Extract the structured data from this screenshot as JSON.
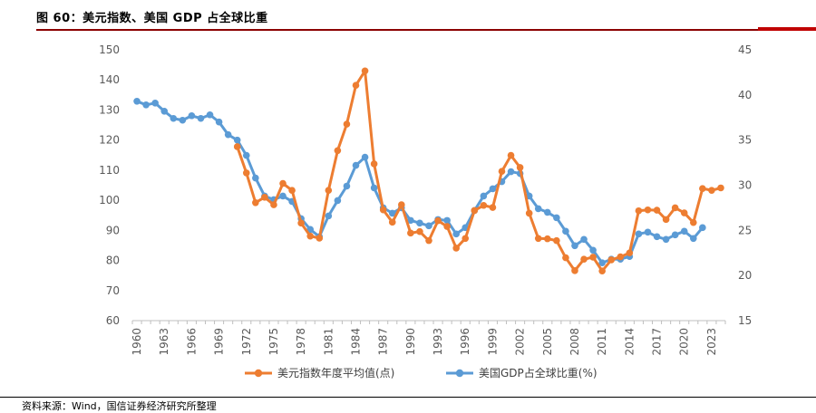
{
  "figure": {
    "title": "图 60：美元指数、美国 GDP 占全球比重",
    "source": "资料来源：Wind，国信证券经济研究所整理"
  },
  "colors": {
    "series1": "#ed7d31",
    "series2": "#5b9bd5",
    "axis": "#bfbfbf",
    "tick": "#595959"
  },
  "chart_data": {
    "type": "line",
    "title": "",
    "xlabel": "",
    "ylabel": "",
    "ylim": [
      60,
      150
    ],
    "y2lim": [
      15,
      45
    ],
    "yticks": [
      "150",
      "140",
      "130",
      "120",
      "110",
      "100",
      "90",
      "80",
      "70",
      "60"
    ],
    "y2ticks": [
      "45",
      "40",
      "35",
      "30",
      "25",
      "20",
      "15"
    ],
    "xticks": [
      "1960",
      "1963",
      "1966",
      "1969",
      "1972",
      "1975",
      "1978",
      "1981",
      "1984",
      "1987",
      "1990",
      "1993",
      "1996",
      "1999",
      "2002",
      "2005",
      "2008",
      "2011",
      "2014",
      "2017",
      "2020",
      "2023"
    ],
    "legend_position": "bottom",
    "grid": false,
    "series": [
      {
        "name": "美元指数年度平均值(点)",
        "axis": "left",
        "x": [
          1971,
          1972,
          1973,
          1974,
          1975,
          1976,
          1977,
          1978,
          1979,
          1980,
          1981,
          1982,
          1983,
          1984,
          1985,
          1986,
          1987,
          1988,
          1989,
          1990,
          1991,
          1992,
          1993,
          1994,
          1995,
          1996,
          1997,
          1998,
          1999,
          2000,
          2001,
          2002,
          2003,
          2004,
          2005,
          2006,
          2007,
          2008,
          2009,
          2010,
          2011,
          2012,
          2013,
          2014,
          2015,
          2016,
          2017,
          2018,
          2019,
          2020,
          2021,
          2022,
          2023,
          2024
        ],
        "values": [
          117.8,
          109.1,
          99.2,
          101.0,
          98.5,
          105.6,
          103.3,
          92.4,
          88.1,
          87.4,
          103.3,
          116.5,
          125.3,
          138.2,
          143.0,
          112.1,
          96.8,
          92.7,
          98.5,
          89.1,
          89.6,
          86.6,
          93.2,
          91.3,
          84.1,
          87.3,
          96.6,
          98.3,
          97.6,
          109.6,
          114.9,
          110.9,
          95.7,
          87.3,
          87.2,
          86.6,
          80.9,
          76.6,
          80.4,
          81.1,
          76.5,
          80.2,
          81.2,
          82.5,
          96.5,
          96.8,
          96.7,
          93.6,
          97.5,
          95.8,
          92.6,
          103.9,
          103.3,
          104.1
        ]
      },
      {
        "name": "美国GDP占全球比重(%)",
        "axis": "right",
        "x": [
          1960,
          1961,
          1962,
          1963,
          1964,
          1965,
          1966,
          1967,
          1968,
          1969,
          1970,
          1971,
          1972,
          1973,
          1974,
          1975,
          1976,
          1977,
          1978,
          1979,
          1980,
          1981,
          1982,
          1983,
          1984,
          1985,
          1986,
          1987,
          1988,
          1989,
          1990,
          1991,
          1992,
          1993,
          1994,
          1995,
          1996,
          1997,
          1998,
          1999,
          2000,
          2001,
          2002,
          2003,
          2004,
          2005,
          2006,
          2007,
          2008,
          2009,
          2010,
          2011,
          2012,
          2013,
          2014,
          2015,
          2016,
          2017,
          2018,
          2019,
          2020,
          2021,
          2022
        ],
        "values": [
          39.3,
          38.9,
          39.1,
          38.2,
          37.4,
          37.2,
          37.7,
          37.4,
          37.8,
          37.0,
          35.6,
          35.0,
          33.3,
          30.8,
          28.8,
          28.4,
          28.8,
          28.2,
          26.3,
          25.1,
          24.3,
          26.6,
          28.3,
          29.9,
          32.2,
          33.1,
          29.7,
          27.5,
          26.9,
          27.5,
          26.1,
          25.8,
          25.5,
          26.2,
          26.1,
          24.6,
          25.3,
          27.2,
          28.8,
          29.6,
          30.4,
          31.5,
          31.3,
          28.8,
          27.4,
          27.0,
          26.4,
          24.9,
          23.3,
          24.0,
          22.8,
          21.4,
          21.8,
          21.8,
          22.1,
          24.6,
          24.8,
          24.3,
          24.0,
          24.5,
          24.9,
          24.1,
          25.3
        ]
      }
    ]
  }
}
